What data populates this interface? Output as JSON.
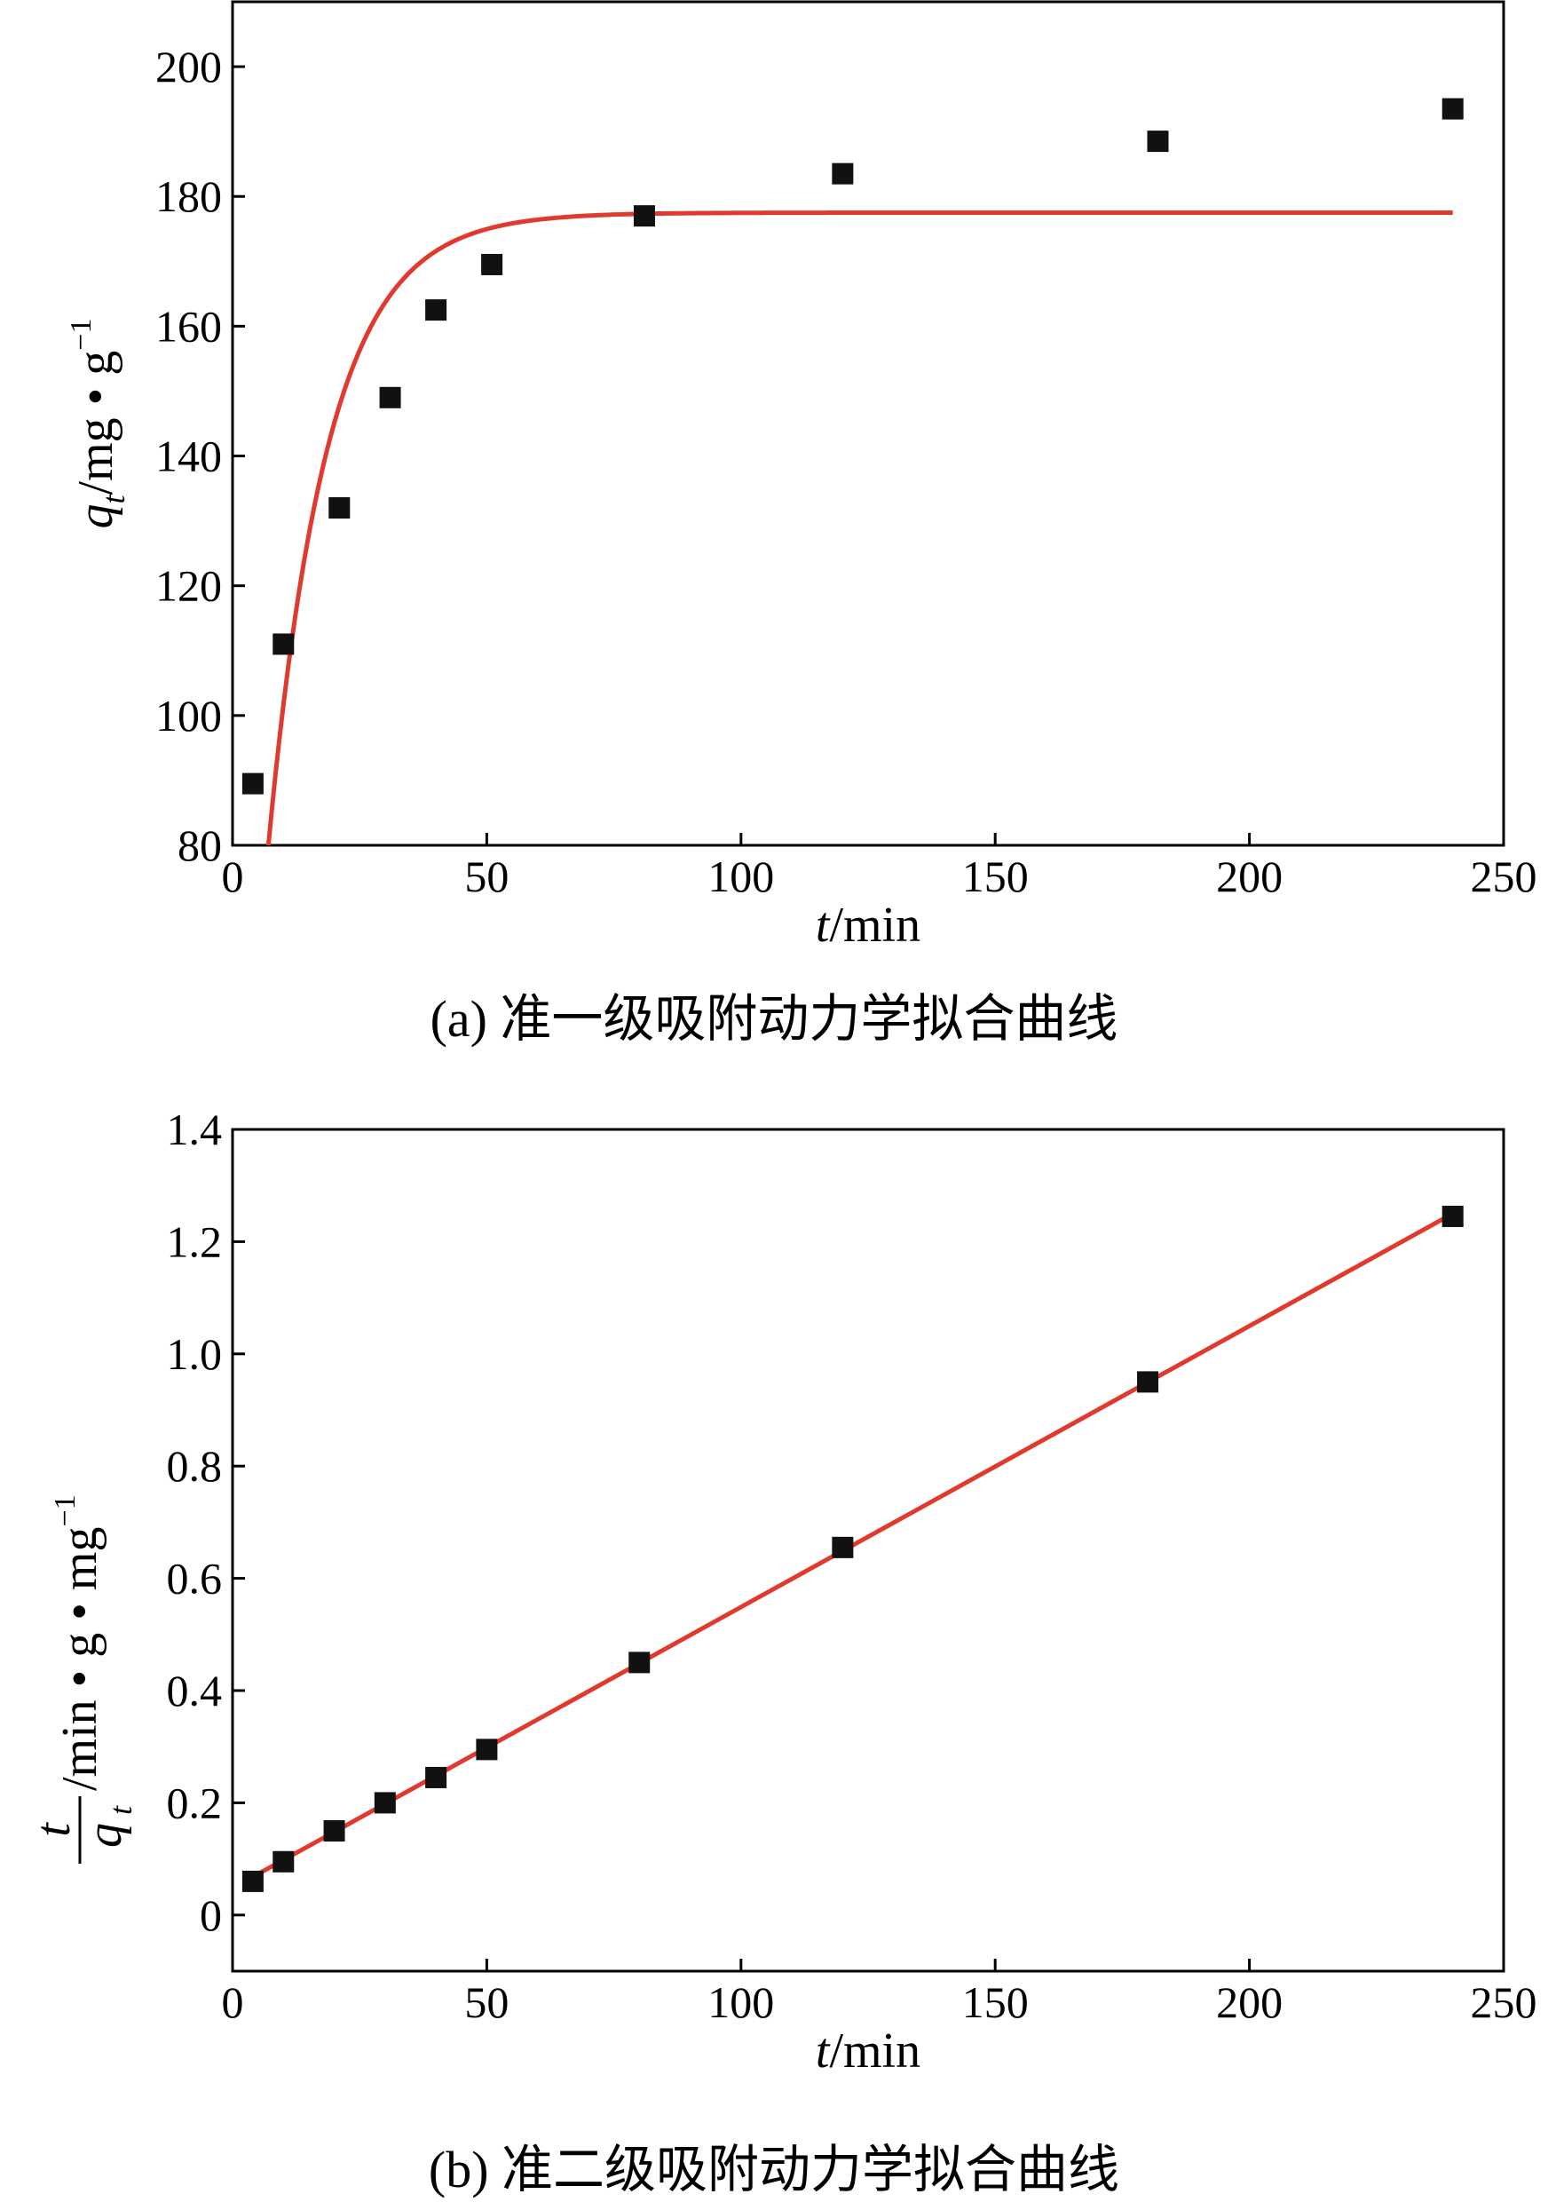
{
  "chart_data": [
    {
      "type": "scatter",
      "caption": "(a) 准一级吸附动力学拟合曲线",
      "xlabel": {
        "italic": "t",
        "rest": "/min"
      },
      "ylabel": {
        "italic": "q",
        "sub": "t",
        "rest": "/mg • g",
        "sup": "−1"
      },
      "xlim": [
        0,
        250
      ],
      "ylim": [
        80,
        210
      ],
      "xticks": [
        0,
        50,
        100,
        150,
        200,
        250
      ],
      "yticks": [
        80,
        100,
        120,
        140,
        160,
        180,
        200
      ],
      "grid": false,
      "series": [
        {
          "kind": "points",
          "marker": "square",
          "color": "#111111",
          "x": [
            4,
            10,
            21,
            31,
            40,
            51,
            81,
            120,
            182,
            240
          ],
          "y": [
            89.5,
            111,
            132,
            149,
            162.5,
            169.5,
            177,
            183.5,
            188.5,
            193.5
          ]
        },
        {
          "kind": "fit-curve",
          "model": "pseudo-first-order",
          "color": "#e03a2f",
          "qe": 177.5,
          "k1": 0.085,
          "x_start": 6.9,
          "x_end": 240
        }
      ]
    },
    {
      "type": "scatter",
      "caption": "(b) 准二级吸附动力学拟合曲线",
      "xlabel": {
        "italic": "t",
        "rest": "/min"
      },
      "ylabel": {
        "frac_num": "t",
        "frac_den": "q",
        "frac_den_sub": "t",
        "rest": "/min • g • mg",
        "sup": "−1"
      },
      "xlim": [
        0,
        250
      ],
      "ylim": [
        -0.1,
        1.4
      ],
      "xticks": [
        0,
        50,
        100,
        150,
        200,
        250
      ],
      "yticks": [
        0,
        0.2,
        0.4,
        0.6,
        0.8,
        1.0,
        1.2,
        1.4
      ],
      "ytick_labels": [
        "0",
        "0.2",
        "0.4",
        "0.6",
        "0.8",
        "1.0",
        "1.2",
        "1.4"
      ],
      "grid": false,
      "series": [
        {
          "kind": "points",
          "marker": "square",
          "color": "#111111",
          "x": [
            4,
            10,
            20,
            30,
            40,
            50,
            80,
            120,
            180,
            240
          ],
          "y": [
            0.06,
            0.095,
            0.15,
            0.2,
            0.245,
            0.295,
            0.45,
            0.655,
            0.95,
            1.245
          ]
        },
        {
          "kind": "fit-line",
          "color": "#e03a2f",
          "x": [
            4,
            240
          ],
          "y": [
            0.068,
            1.25
          ]
        }
      ]
    }
  ]
}
